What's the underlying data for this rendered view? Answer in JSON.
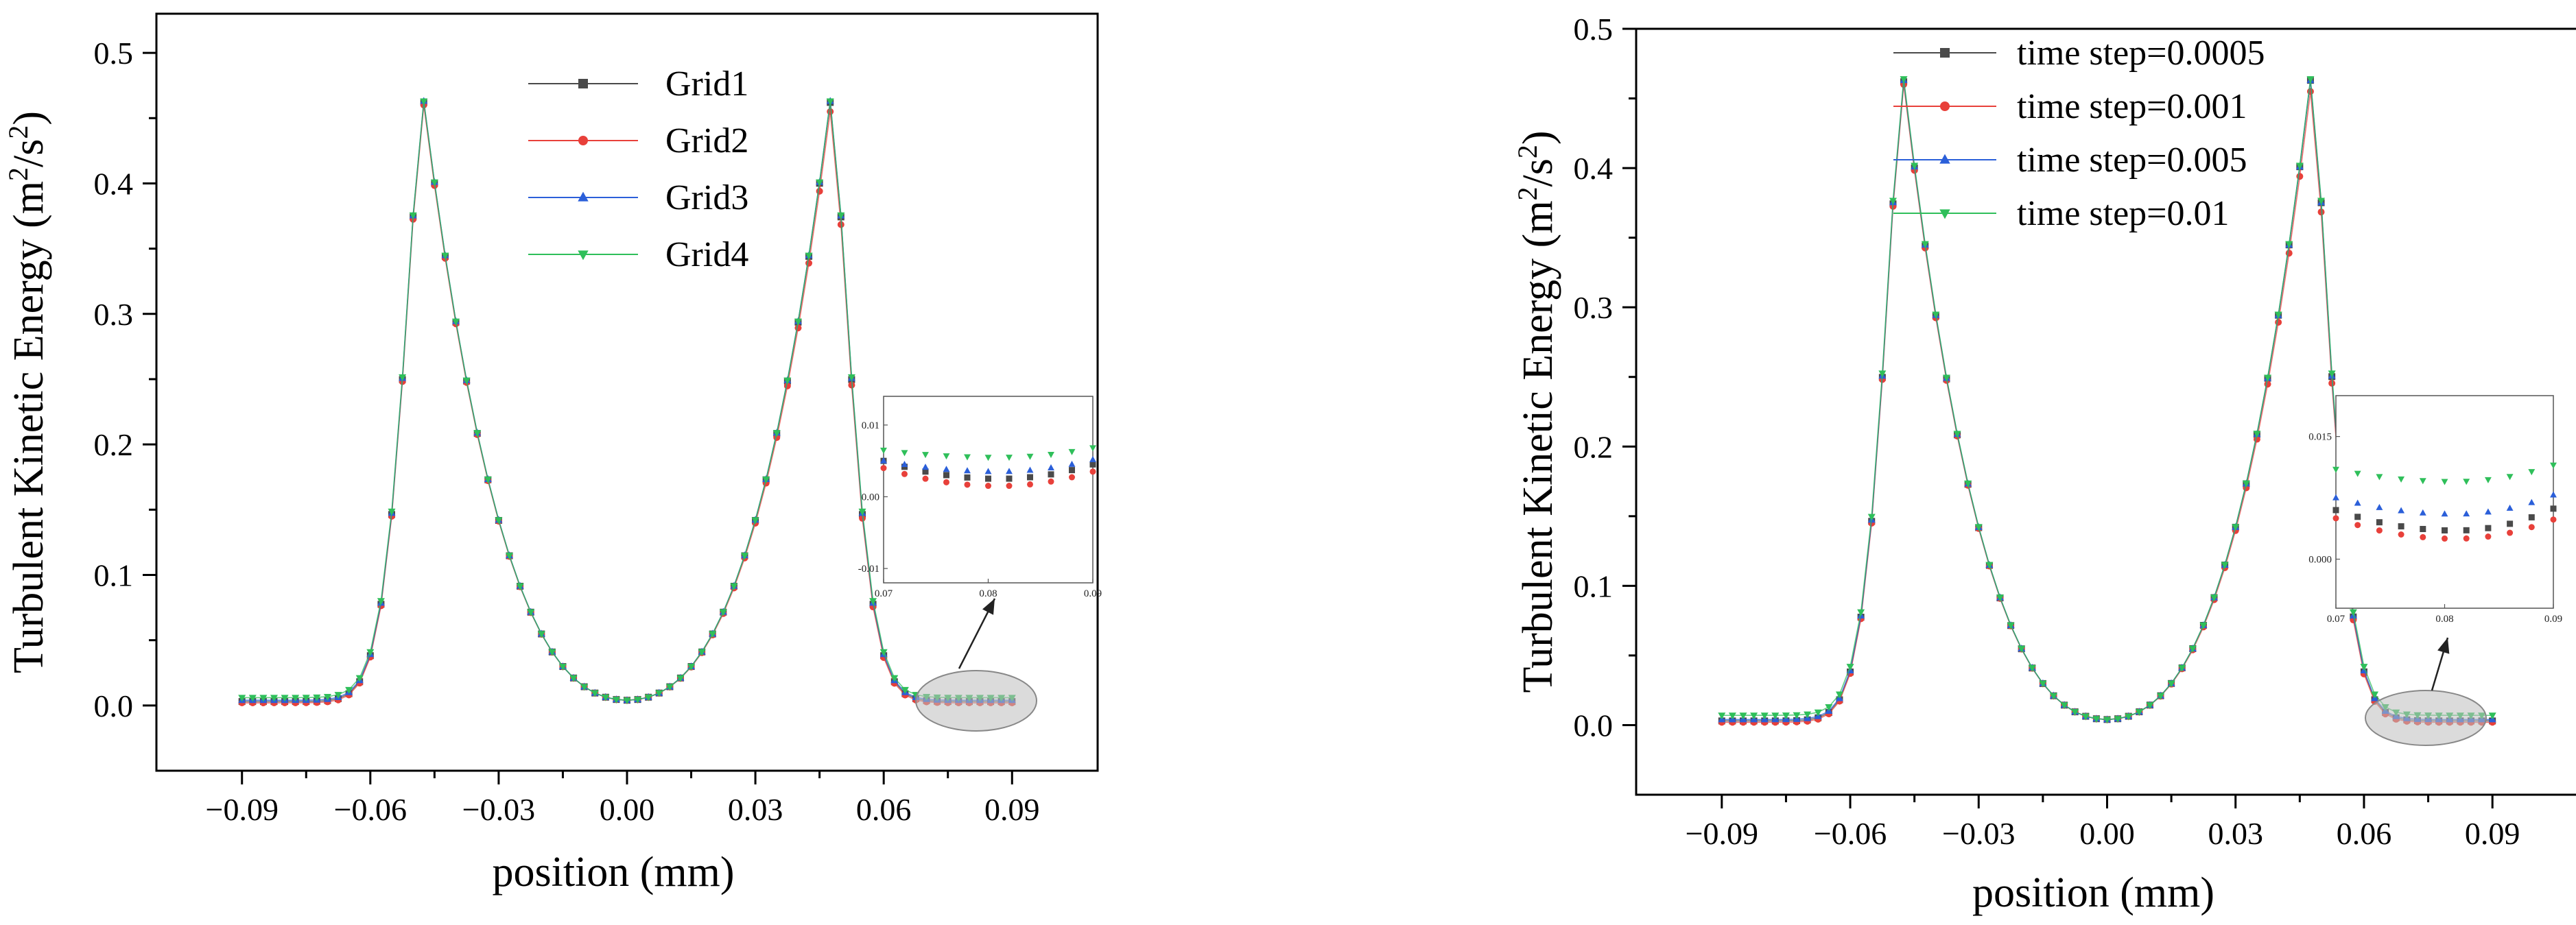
{
  "chart_data": [
    {
      "type": "line",
      "panel": "left",
      "title": "",
      "xlabel": "position (mm)",
      "ylabel": "Turbulent Kinetic Energy (m²/s²)",
      "ylabel_parts": {
        "pre": "Turbulent Kinetic Energy (m",
        "sup1": "2",
        "mid": "/s",
        "sup2": "2",
        "post": ")"
      },
      "xlim": [
        -0.11,
        0.11
      ],
      "ylim": [
        -0.05,
        0.53
      ],
      "xticks": [
        -0.09,
        -0.06,
        -0.03,
        0.0,
        0.03,
        0.06,
        0.09
      ],
      "xtick_labels": [
        "−0.09",
        "−0.06",
        "−0.03",
        "0.00",
        "0.03",
        "0.06",
        "0.09"
      ],
      "yticks": [
        0.0,
        0.1,
        0.2,
        0.3,
        0.4,
        0.5
      ],
      "ytick_labels": [
        "0.0",
        "0.1",
        "0.2",
        "0.3",
        "0.4",
        "0.5"
      ],
      "legend_position": "top-center",
      "series": [
        {
          "name": "Grid1",
          "color": "#4a4a4a",
          "marker": "square",
          "offset": 0.0,
          "right_peak": 0.462,
          "left_peak": 0.462,
          "tail": 0.003
        },
        {
          "name": "Grid2",
          "color": "#e8403a",
          "marker": "circle",
          "offset": 0.0,
          "right_peak": 0.455,
          "left_peak": 0.46,
          "tail": 0.002
        },
        {
          "name": "Grid3",
          "color": "#2b5fd9",
          "marker": "triangle-up",
          "offset": 0.0,
          "right_peak": 0.463,
          "left_peak": 0.463,
          "tail": 0.004
        },
        {
          "name": "Grid4",
          "color": "#2fbf5a",
          "marker": "triangle-down",
          "offset": 0.0,
          "right_peak": 0.463,
          "left_peak": 0.463,
          "tail": 0.006
        }
      ],
      "inset": {
        "xlim": [
          0.07,
          0.09
        ],
        "ylim": [
          -0.012,
          0.014
        ],
        "xticks": [
          0.07,
          0.08,
          0.09
        ],
        "xtick_labels": [
          "0.07",
          "0.08",
          "0.09"
        ],
        "yticks": [
          -0.01,
          0.0,
          0.01
        ],
        "ytick_labels": [
          "-0.01",
          "0.00",
          "0.01"
        ],
        "levels": [
          {
            "series": "Grid1",
            "start": 0.005,
            "min": 0.0025,
            "end": 0.0055
          },
          {
            "series": "Grid2",
            "start": 0.004,
            "min": 0.0015,
            "end": 0.0045
          },
          {
            "series": "Grid3",
            "start": 0.005,
            "min": 0.0035,
            "end": 0.006
          },
          {
            "series": "Grid4",
            "start": 0.0065,
            "min": 0.0055,
            "end": 0.0075
          }
        ]
      }
    },
    {
      "type": "line",
      "panel": "right",
      "title": "",
      "xlabel": "position (mm)",
      "ylabel": "Turbulent Kinetic Energy (m²/s²)",
      "ylabel_parts": {
        "pre": "Turbulent Kinetic Energy (m",
        "sup1": "2",
        "mid": "/s",
        "sup2": "2",
        "post": ")"
      },
      "xlim": [
        -0.11,
        0.11
      ],
      "ylim": [
        -0.05,
        0.5
      ],
      "xticks": [
        -0.09,
        -0.06,
        -0.03,
        0.0,
        0.03,
        0.06,
        0.09
      ],
      "xtick_labels": [
        "−0.09",
        "−0.06",
        "−0.03",
        "0.00",
        "0.03",
        "0.06",
        "0.09"
      ],
      "yticks": [
        0.0,
        0.1,
        0.2,
        0.3,
        0.4,
        0.5
      ],
      "ytick_labels": [
        "0.0",
        "0.1",
        "0.2",
        "0.3",
        "0.4",
        "0.5"
      ],
      "legend_position": "top-left",
      "series": [
        {
          "name": "time step=0.0005",
          "color": "#4a4a4a",
          "marker": "square",
          "offset": 0.0,
          "right_peak": 0.463,
          "left_peak": 0.462,
          "tail": 0.003
        },
        {
          "name": "time step=0.001",
          "color": "#e8403a",
          "marker": "circle",
          "offset": 0.0,
          "right_peak": 0.455,
          "left_peak": 0.46,
          "tail": 0.002
        },
        {
          "name": "time step=0.005",
          "color": "#2b5fd9",
          "marker": "triangle-up",
          "offset": 0.0,
          "right_peak": 0.463,
          "left_peak": 0.463,
          "tail": 0.004
        },
        {
          "name": "time step=0.01",
          "color": "#2fbf5a",
          "marker": "triangle-down",
          "offset": 0.0,
          "right_peak": 0.464,
          "left_peak": 0.464,
          "tail": 0.007
        }
      ],
      "inset": {
        "xlim": [
          0.07,
          0.09
        ],
        "ylim": [
          -0.006,
          0.02
        ],
        "xticks": [
          0.07,
          0.08,
          0.09
        ],
        "xtick_labels": [
          "0.07",
          "0.08",
          "0.09"
        ],
        "yticks": [
          0.0,
          0.015
        ],
        "ytick_labels": [
          "0.000",
          "0.015"
        ],
        "levels": [
          {
            "series": "time step=0.0005",
            "start": 0.006,
            "min": 0.0035,
            "end": 0.0075
          },
          {
            "series": "time step=0.001",
            "start": 0.005,
            "min": 0.0025,
            "end": 0.006
          },
          {
            "series": "time step=0.005",
            "start": 0.0075,
            "min": 0.0055,
            "end": 0.009
          },
          {
            "series": "time step=0.01",
            "start": 0.011,
            "min": 0.0095,
            "end": 0.0125
          }
        ]
      }
    }
  ]
}
